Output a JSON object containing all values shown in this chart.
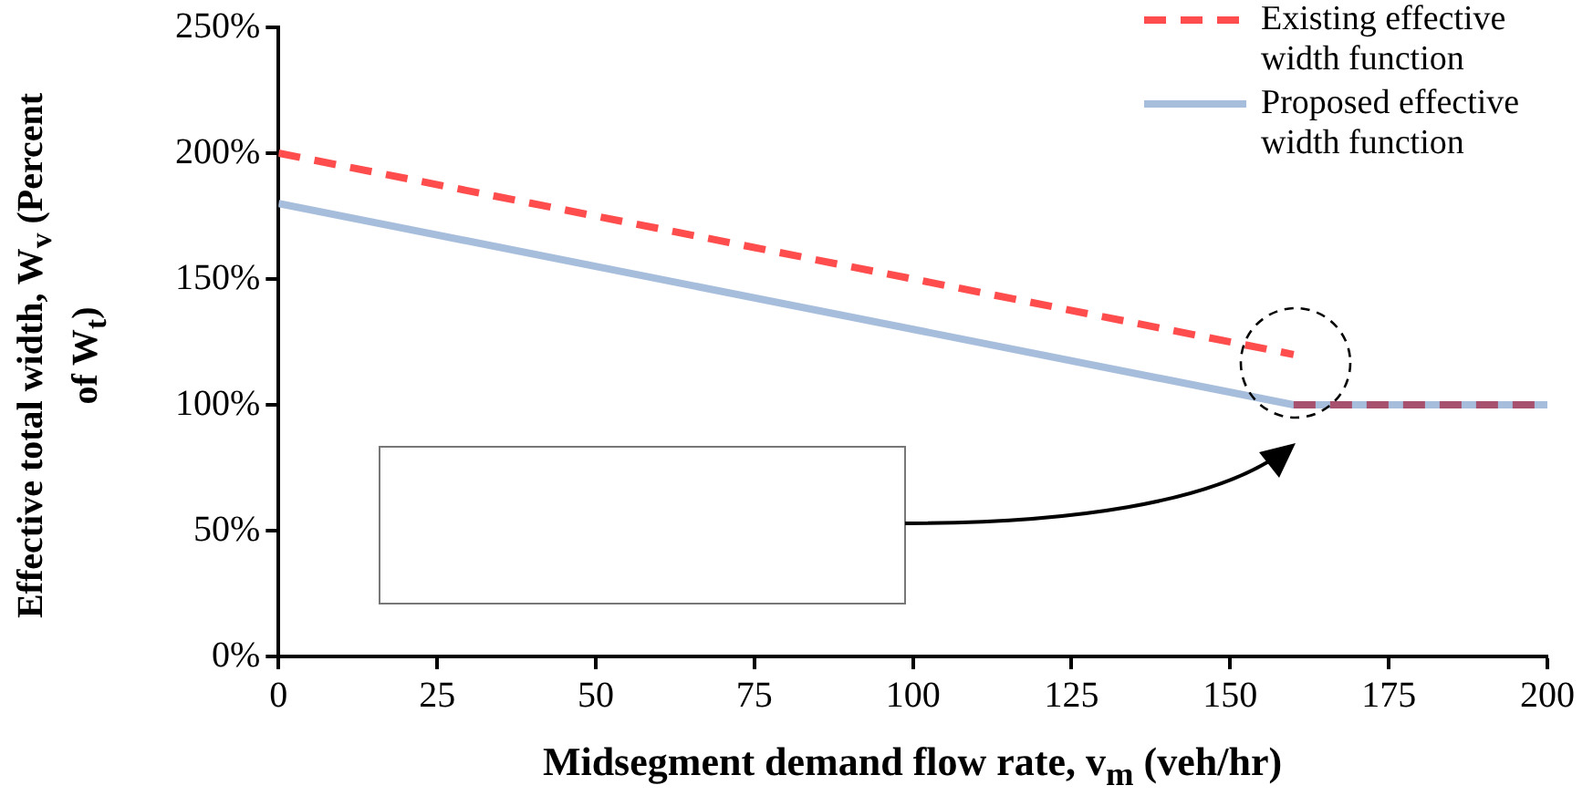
{
  "chart_data": {
    "type": "line",
    "xlabel": "Midsegment demand flow rate, v$_{m}$  (veh/hr)",
    "ylabel": "Effective total width, W$_{v}$ (Percent of W$_{t}$)",
    "xlim": [
      0,
      200
    ],
    "xticks": [
      0,
      25,
      50,
      75,
      100,
      125,
      150,
      175,
      200
    ],
    "ylim": [
      0,
      250
    ],
    "yticks": [
      {
        "value": 0,
        "label": "0%"
      },
      {
        "value": 50,
        "label": "50%"
      },
      {
        "value": 100,
        "label": "100%"
      },
      {
        "value": 150,
        "label": "150%"
      },
      {
        "value": 200,
        "label": "200%"
      },
      {
        "value": 250,
        "label": "250%"
      }
    ],
    "series": [
      {
        "name": "Existing effective width function",
        "color": "#ff4d4d",
        "line_style": "dashed",
        "x": [
          0,
          160
        ],
        "values": [
          200,
          120
        ]
      },
      {
        "name": "Proposed effective width function",
        "color": "#a6bddb",
        "line_style": "solid",
        "x": [
          0,
          160,
          200
        ],
        "values": [
          180,
          100,
          100
        ]
      },
      {
        "color": "#a8516e",
        "line_style": "dashed",
        "x": [
          160,
          200
        ],
        "values": [
          100,
          100
        ]
      }
    ],
    "legend": "top right",
    "grid": false,
    "marker": "none"
  }
}
